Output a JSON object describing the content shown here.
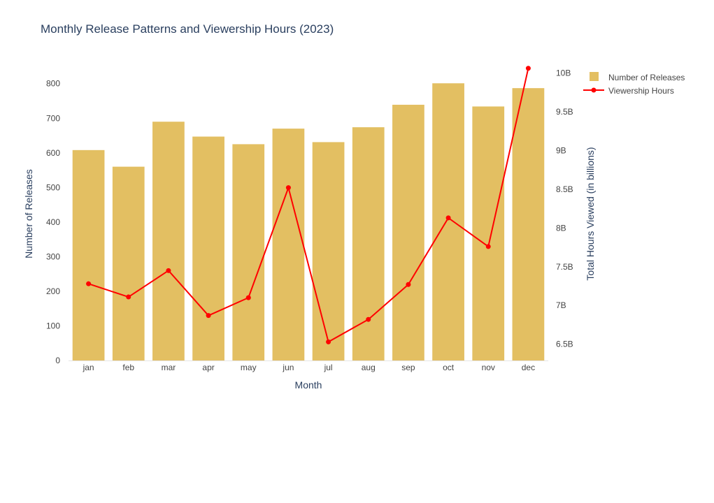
{
  "chart_data": {
    "type": "bar",
    "title": "Monthly Release Patterns and Viewership Hours (2023)",
    "xlabel": "Month",
    "ylabel": "Number of Releases",
    "y2label": "Total Hours Viewed (in billions)",
    "categories": [
      "jan",
      "feb",
      "mar",
      "apr",
      "may",
      "jun",
      "jul",
      "aug",
      "sep",
      "oct",
      "nov",
      "dec"
    ],
    "series": [
      {
        "name": "Number of Releases",
        "type": "bar",
        "axis": "left",
        "color": "#e3bf62",
        "values": [
          608,
          560,
          690,
          647,
          625,
          670,
          631,
          674,
          739,
          801,
          734,
          787
        ]
      },
      {
        "name": "Viewership Hours",
        "type": "line",
        "axis": "right",
        "color": "#ff0000",
        "values": [
          7.28,
          7.11,
          7.45,
          6.87,
          7.1,
          8.52,
          6.53,
          6.82,
          7.27,
          8.13,
          7.76,
          10.06
        ]
      }
    ],
    "ylim": [
      0,
      860
    ],
    "yticks": [
      0,
      100,
      200,
      300,
      400,
      500,
      600,
      700,
      800
    ],
    "y2lim": [
      6.29,
      10.13
    ],
    "y2ticks": [
      6.5,
      7,
      7.5,
      8,
      8.5,
      9,
      9.5,
      10
    ],
    "y2ticklabels": [
      "6.5B",
      "7B",
      "7.5B",
      "8B",
      "8.5B",
      "9B",
      "9.5B",
      "10B"
    ],
    "grid": false,
    "legend": "top-right"
  }
}
